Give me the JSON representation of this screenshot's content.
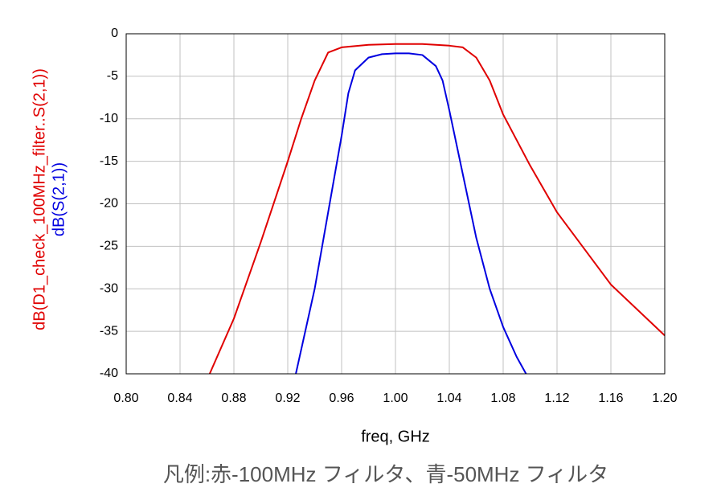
{
  "chart_data": {
    "type": "line",
    "x_label": "freq, GHz",
    "caption": "凡例:赤-100MHz フィルタ、青-50MHz フィルタ",
    "xlim": [
      0.8,
      1.2
    ],
    "xticks": [
      {
        "value": 0.8,
        "label": "0.80"
      },
      {
        "value": 0.84,
        "label": "0.84"
      },
      {
        "value": 0.88,
        "label": "0.88"
      },
      {
        "value": 0.92,
        "label": "0.92"
      },
      {
        "value": 0.96,
        "label": "0.96"
      },
      {
        "value": 1.0,
        "label": "1.00"
      },
      {
        "value": 1.04,
        "label": "1.04"
      },
      {
        "value": 1.08,
        "label": "1.08"
      },
      {
        "value": 1.12,
        "label": "1.12"
      },
      {
        "value": 1.16,
        "label": "1.16"
      },
      {
        "value": 1.2,
        "label": "1.20"
      }
    ],
    "ylim": [
      -40,
      0
    ],
    "yticks": [
      0,
      -5,
      -10,
      -15,
      -20,
      -25,
      -30,
      -35,
      -40
    ],
    "grid": true,
    "series": [
      {
        "name": "dB(D1_check_100MHz_filter..S(2,1))",
        "color": "#e00000",
        "x": [
          0.862,
          0.88,
          0.9,
          0.92,
          0.93,
          0.94,
          0.95,
          0.96,
          0.98,
          1.0,
          1.02,
          1.04,
          1.05,
          1.06,
          1.07,
          1.08,
          1.1,
          1.12,
          1.16,
          1.2
        ],
        "values": [
          -40,
          -33.5,
          -24.5,
          -15,
          -10,
          -5.5,
          -2.2,
          -1.6,
          -1.3,
          -1.2,
          -1.2,
          -1.4,
          -1.6,
          -2.8,
          -5.5,
          -9.5,
          -15.5,
          -21,
          -29.5,
          -35.5
        ]
      },
      {
        "name": "dB(S(2,1))",
        "color": "#0000e0",
        "x": [
          0.926,
          0.94,
          0.95,
          0.96,
          0.965,
          0.97,
          0.98,
          0.99,
          1.0,
          1.01,
          1.02,
          1.03,
          1.035,
          1.04,
          1.05,
          1.06,
          1.07,
          1.08,
          1.09,
          1.097
        ],
        "values": [
          -40,
          -30,
          -21,
          -12,
          -7,
          -4.3,
          -2.8,
          -2.4,
          -2.3,
          -2.3,
          -2.5,
          -3.8,
          -5.5,
          -9,
          -16.5,
          -24,
          -30,
          -34.5,
          -38,
          -40
        ]
      }
    ]
  }
}
